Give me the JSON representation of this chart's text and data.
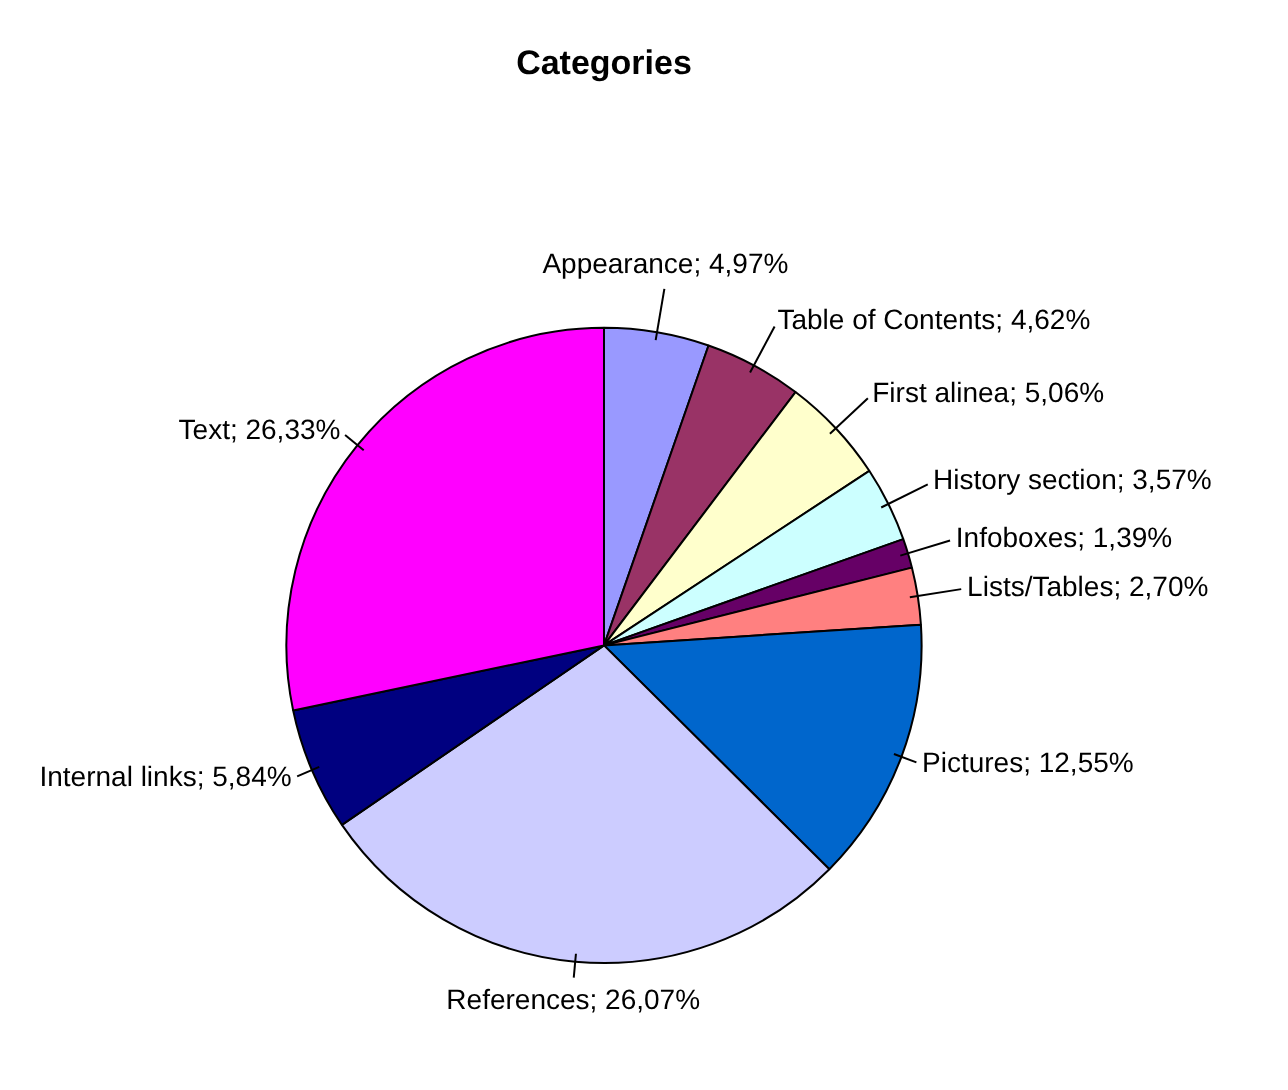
{
  "chart_data": {
    "type": "pie",
    "title": "Categories",
    "categories": [
      "Appearance",
      "Table of Contents",
      "First alinea",
      "History section",
      "Infoboxes",
      "Lists/Tables",
      "Pictures",
      "References",
      "Internal links",
      "Text"
    ],
    "values": [
      4.97,
      4.62,
      5.06,
      3.57,
      1.39,
      2.7,
      12.55,
      26.07,
      5.84,
      26.33
    ],
    "value_labels": [
      "4,97%",
      "4,62%",
      "5,06%",
      "3,57%",
      "1,39%",
      "2,70%",
      "12,55%",
      "26,07%",
      "5,84%",
      "26,33%"
    ],
    "colors": [
      "#9999ff",
      "#993366",
      "#ffffcc",
      "#ccffff",
      "#660066",
      "#ff8080",
      "#0066cc",
      "#ccccff",
      "#000080",
      "#ff00ff"
    ],
    "legend": false
  }
}
